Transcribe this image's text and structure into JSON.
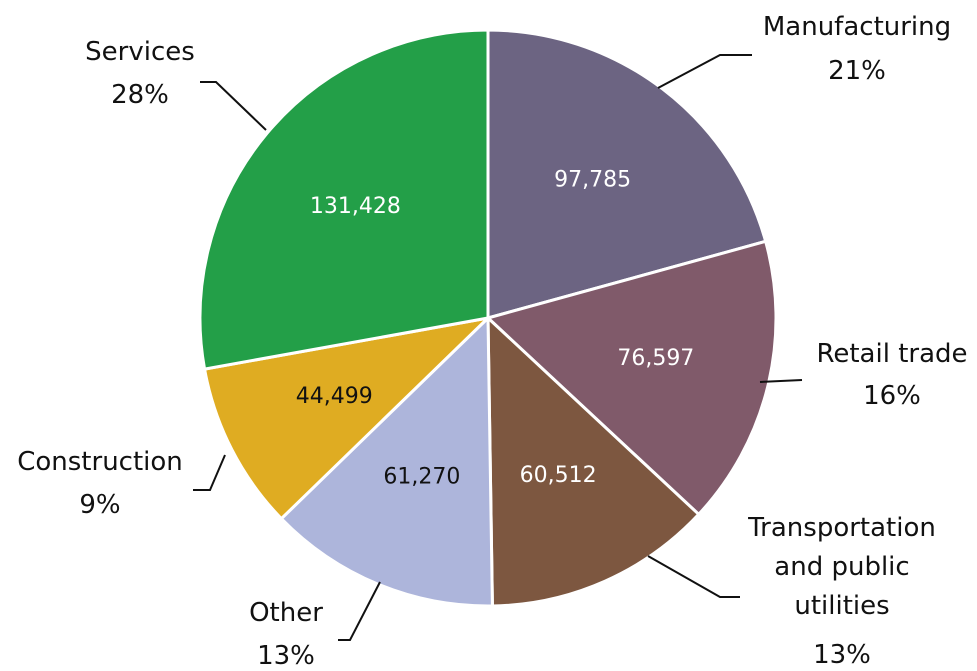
{
  "chart_data": {
    "type": "pie",
    "categories": [
      "Manufacturing",
      "Retail trade",
      "Transportation and public utilities",
      "Other",
      "Construction",
      "Services"
    ],
    "values": [
      97785,
      76597,
      60512,
      61270,
      44499,
      131428
    ],
    "value_labels": [
      "97,785",
      "76,597",
      "60,512",
      "61,270",
      "44,499",
      "131,428"
    ],
    "percent_labels": [
      "21%",
      "16%",
      "13%",
      "13%",
      "9%",
      "28%"
    ],
    "colors": [
      "#6c6482",
      "#805a6a",
      "#7d5740",
      "#adb5db",
      "#dfac22",
      "#239f48"
    ]
  }
}
